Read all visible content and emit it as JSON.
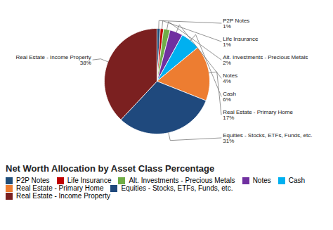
{
  "chart_data": {
    "type": "pie",
    "title": "Net Worth Allocation by Asset Class Percentage",
    "categories": [
      "P2P Notes",
      "Life Insurance",
      "Alt. Investments - Precious Metals",
      "Notes",
      "Cash",
      "Real Estate - Primary Home",
      "Equities - Stocks, ETFs, Funds, etc.",
      "Real Estate - Income Property"
    ],
    "values": [
      1,
      1,
      2,
      4,
      6,
      17,
      31,
      38
    ],
    "value_labels": [
      "1%",
      "1%",
      "2%",
      "4%",
      "6%",
      "17%",
      "31%",
      "38%"
    ],
    "colors": [
      "#1F4E79",
      "#C00000",
      "#70AD47",
      "#7030A0",
      "#00B0F0",
      "#ED7D31",
      "#1F497D",
      "#7B2020"
    ],
    "data_labels": true,
    "legend": "lower left"
  }
}
